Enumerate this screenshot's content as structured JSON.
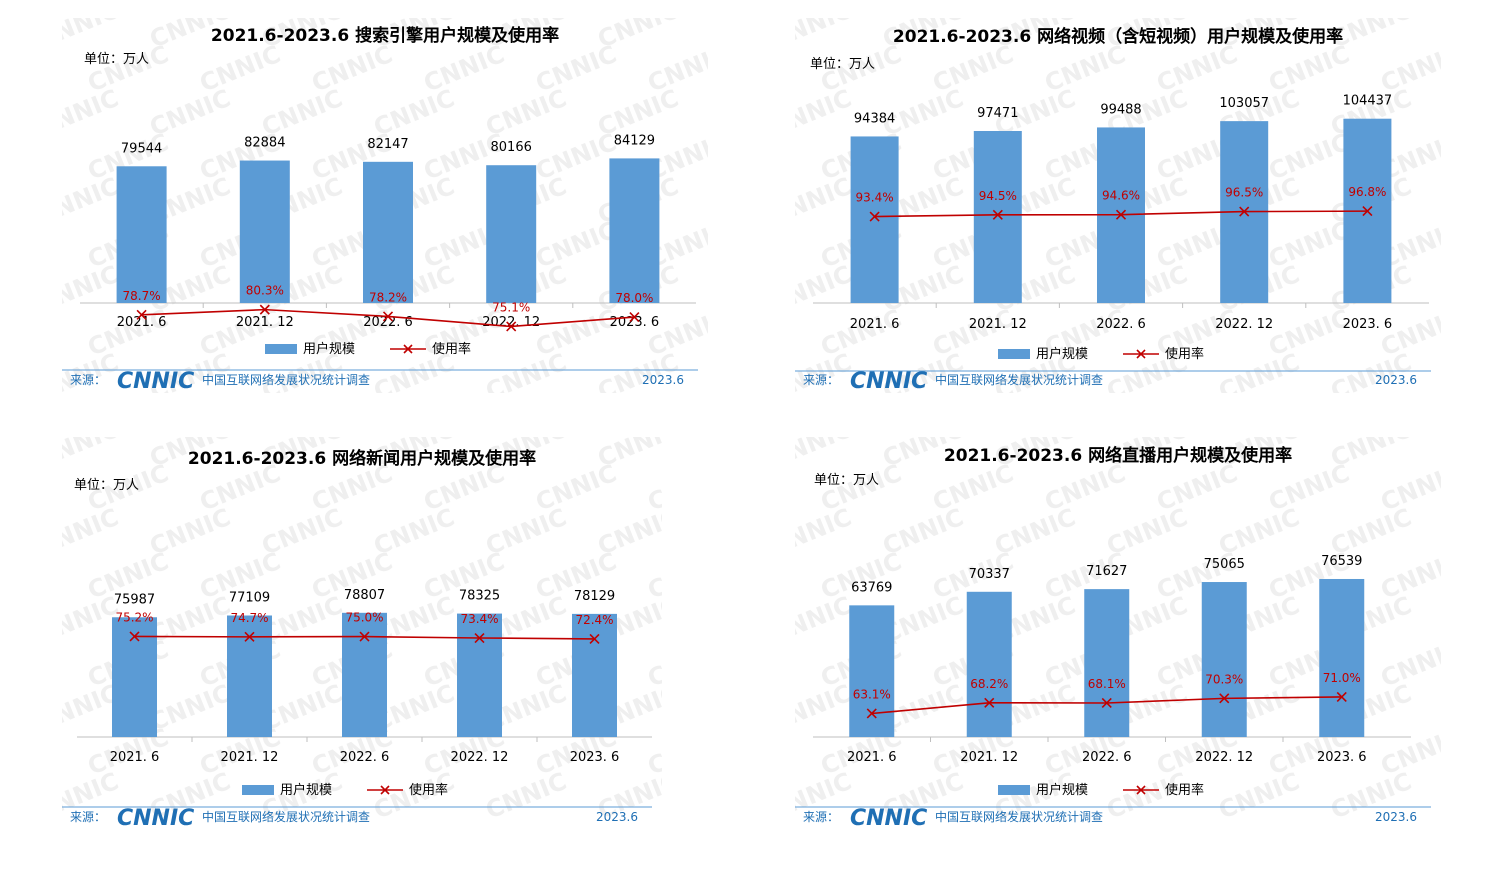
{
  "colors": {
    "bar": "#5b9bd5",
    "line": "#c00000",
    "source": "#1f6fb4",
    "rule": "#5b9bd5"
  },
  "source": {
    "label": "来源：",
    "logo": "CNNIC",
    "org": "中国互联网络发展状况统计调查",
    "date": "2023.6",
    "watermark": "CNNIC"
  },
  "unit_label": "单位：万人",
  "legend": {
    "bar": "用户规模",
    "line": "使用率"
  },
  "chart_data": [
    {
      "type": "bar",
      "title": "2021.6-2023.6 搜索引擎用户规模及使用率",
      "categories": [
        "2021. 6",
        "2021. 12",
        "2022. 6",
        "2022. 12",
        "2023. 6"
      ],
      "series": [
        {
          "name": "用户规模",
          "type": "bar",
          "values": [
            79544,
            82884,
            82147,
            80166,
            84129
          ]
        },
        {
          "name": "使用率",
          "type": "line",
          "values": [
            78.7,
            80.3,
            78.2,
            75.1,
            78.0
          ],
          "labels": [
            "78.7%",
            "80.3%",
            "78.2%",
            "75.1%",
            "78.0%"
          ]
        }
      ]
    },
    {
      "type": "bar",
      "title": "2021.6-2023.6 网络视频（含短视频）用户规模及使用率",
      "categories": [
        "2021. 6",
        "2021. 12",
        "2022. 6",
        "2022. 12",
        "2023. 6"
      ],
      "series": [
        {
          "name": "用户规模",
          "type": "bar",
          "values": [
            94384,
            97471,
            99488,
            103057,
            104437
          ]
        },
        {
          "name": "使用率",
          "type": "line",
          "values": [
            93.4,
            94.5,
            94.6,
            96.5,
            96.8
          ],
          "labels": [
            "93.4%",
            "94.5%",
            "94.6%",
            "96.5%",
            "96.8%"
          ]
        }
      ]
    },
    {
      "type": "bar",
      "title": "2021.6-2023.6 网络新闻用户规模及使用率",
      "categories": [
        "2021. 6",
        "2021. 12",
        "2022. 6",
        "2022. 12",
        "2023. 6"
      ],
      "series": [
        {
          "name": "用户规模",
          "type": "bar",
          "values": [
            75987,
            77109,
            78807,
            78325,
            78129
          ]
        },
        {
          "name": "使用率",
          "type": "line",
          "values": [
            75.2,
            74.7,
            75.0,
            73.4,
            72.4
          ],
          "labels": [
            "75.2%",
            "74.7%",
            "75.0%",
            "73.4%",
            "72.4%"
          ]
        }
      ]
    },
    {
      "type": "bar",
      "title": "2021.6-2023.6 网络直播用户规模及使用率",
      "categories": [
        "2021. 6",
        "2021. 12",
        "2022. 6",
        "2022. 12",
        "2023. 6"
      ],
      "series": [
        {
          "name": "用户规模",
          "type": "bar",
          "values": [
            63769,
            70337,
            71627,
            75065,
            76539
          ]
        },
        {
          "name": "使用率",
          "type": "line",
          "values": [
            63.1,
            68.2,
            68.1,
            70.3,
            71.0
          ],
          "labels": [
            "63.1%",
            "68.2%",
            "68.1%",
            "70.3%",
            "71.0%"
          ]
        }
      ]
    }
  ]
}
